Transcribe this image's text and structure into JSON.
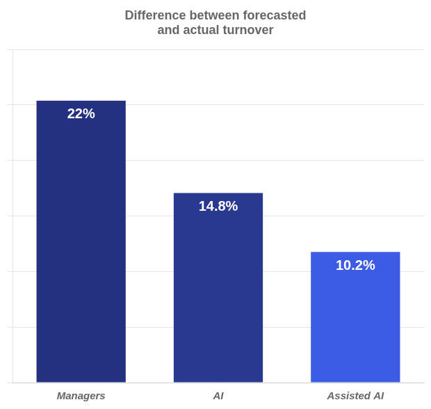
{
  "chart_data": {
    "type": "bar",
    "title": "Difference between forecasted\nand actual turnover",
    "categories": [
      "Managers",
      "AI",
      "Assisted AI"
    ],
    "values": [
      22,
      14.8,
      10.2
    ],
    "value_labels": [
      "22%",
      "14.8%",
      "10.2%"
    ],
    "data_labels": true,
    "colors": [
      "#243080",
      "#2a3990",
      "#3d5ce5"
    ],
    "ylim": [
      0,
      26
    ],
    "yticks": [
      0,
      4.333333333333333,
      8.666666666666666,
      13,
      17.333333333333332,
      21.666666666666668,
      26
    ],
    "tick_labels": "x",
    "grid": true
  }
}
